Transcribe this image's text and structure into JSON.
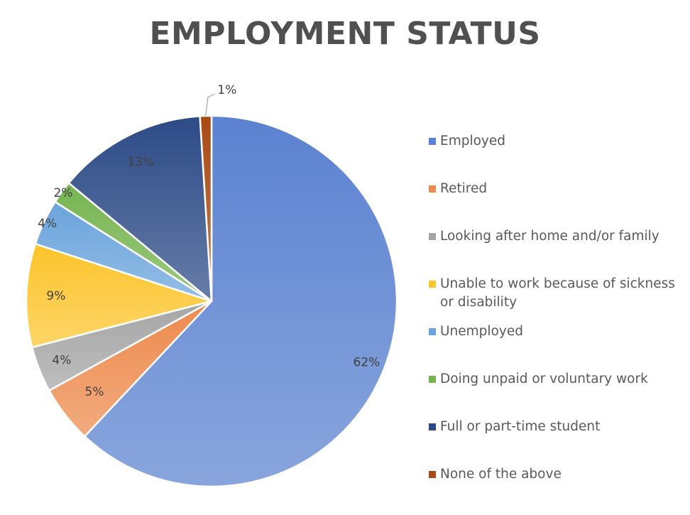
{
  "chart_data": {
    "type": "pie",
    "title": "EMPLOYMENT STATUS",
    "legend_position": "right",
    "slices": [
      {
        "name": "Employed",
        "value": 62,
        "label": "62%",
        "color": "#5b82d0"
      },
      {
        "name": "Retired",
        "value": 5,
        "label": "5%",
        "color": "#ed8a4c"
      },
      {
        "name": "Looking after home and/or family",
        "value": 4,
        "label": "4%",
        "color": "#a5a5a5"
      },
      {
        "name": "Unable to work because of sickness or disability",
        "value": 9,
        "label": "9%",
        "color": "#fcc42c"
      },
      {
        "name": "Unemployed",
        "value": 4,
        "label": "4%",
        "color": "#6aa4dc"
      },
      {
        "name": "Doing unpaid or voluntary work",
        "value": 2,
        "label": "2%",
        "color": "#76b450"
      },
      {
        "name": "Full or part-time student",
        "value": 13,
        "label": "13%",
        "color": "#2c4a86"
      },
      {
        "name": "None of the above",
        "value": 1,
        "label": "1%",
        "color": "#a84a14"
      }
    ]
  }
}
